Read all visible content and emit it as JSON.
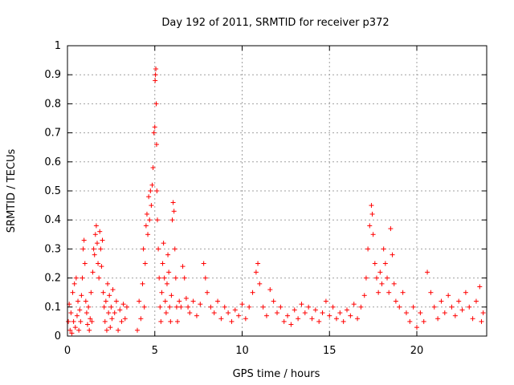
{
  "chart_data": {
    "type": "scatter",
    "title": "Day 192 of 2011, SRMTID for receiver p372",
    "xlabel": "GPS time / hours",
    "ylabel": "SRMTID / TECUs",
    "xlim": [
      0,
      24
    ],
    "ylim": [
      0,
      1
    ],
    "xticks": [
      "0",
      "5",
      "10",
      "15",
      "20"
    ],
    "yticks": [
      "0",
      "0.1",
      "0.2",
      "0.3",
      "0.4",
      "0.5",
      "0.6",
      "0.7",
      "0.8",
      "0.9",
      "1"
    ],
    "grid": true,
    "marker": "plus",
    "color": "#ff0000",
    "series": [
      {
        "points": [
          [
            0.05,
            0.05
          ],
          [
            0.1,
            0.11
          ],
          [
            0.15,
            0.02
          ],
          [
            0.2,
            0.08
          ],
          [
            0.25,
            0.01
          ],
          [
            0.3,
            0.15
          ],
          [
            0.35,
            0.05
          ],
          [
            0.4,
            0.18
          ],
          [
            0.45,
            0.03
          ],
          [
            0.5,
            0.2
          ],
          [
            0.55,
            0.07
          ],
          [
            0.6,
            0.12
          ],
          [
            0.65,
            0.02
          ],
          [
            0.7,
            0.09
          ],
          [
            0.75,
            0.05
          ],
          [
            0.8,
            0.14
          ],
          [
            0.85,
            0.2
          ],
          [
            0.9,
            0.3
          ],
          [
            0.95,
            0.33
          ],
          [
            1.0,
            0.25
          ],
          [
            1.05,
            0.12
          ],
          [
            1.1,
            0.08
          ],
          [
            1.15,
            0.04
          ],
          [
            1.2,
            0.1
          ],
          [
            1.25,
            0.02
          ],
          [
            1.3,
            0.06
          ],
          [
            1.35,
            0.15
          ],
          [
            1.4,
            0.05
          ],
          [
            1.45,
            0.22
          ],
          [
            1.5,
            0.3
          ],
          [
            1.55,
            0.28
          ],
          [
            1.6,
            0.35
          ],
          [
            1.65,
            0.38
          ],
          [
            1.7,
            0.32
          ],
          [
            1.75,
            0.25
          ],
          [
            1.8,
            0.2
          ],
          [
            1.85,
            0.36
          ],
          [
            1.9,
            0.3
          ],
          [
            1.95,
            0.24
          ],
          [
            2.0,
            0.33
          ],
          [
            2.05,
            0.15
          ],
          [
            2.1,
            0.1
          ],
          [
            2.15,
            0.05
          ],
          [
            2.2,
            0.12
          ],
          [
            2.25,
            0.02
          ],
          [
            2.3,
            0.18
          ],
          [
            2.35,
            0.08
          ],
          [
            2.4,
            0.14
          ],
          [
            2.45,
            0.03
          ],
          [
            2.5,
            0.1
          ],
          [
            2.55,
            0.06
          ],
          [
            2.6,
            0.16
          ],
          [
            2.7,
            0.08
          ],
          [
            2.8,
            0.12
          ],
          [
            2.9,
            0.02
          ],
          [
            3.0,
            0.09
          ],
          [
            3.1,
            0.05
          ],
          [
            3.2,
            0.11
          ],
          [
            3.3,
            0.06
          ],
          [
            3.4,
            0.1
          ],
          [
            4.0,
            0.02
          ],
          [
            4.1,
            0.12
          ],
          [
            4.2,
            0.06
          ],
          [
            4.3,
            0.18
          ],
          [
            4.35,
            0.3
          ],
          [
            4.4,
            0.1
          ],
          [
            4.45,
            0.25
          ],
          [
            4.5,
            0.38
          ],
          [
            4.55,
            0.42
          ],
          [
            4.6,
            0.35
          ],
          [
            4.65,
            0.48
          ],
          [
            4.7,
            0.4
          ],
          [
            4.75,
            0.5
          ],
          [
            4.8,
            0.45
          ],
          [
            4.85,
            0.52
          ],
          [
            4.9,
            0.58
          ],
          [
            4.95,
            0.7
          ],
          [
            5.0,
            0.72
          ],
          [
            5.02,
            0.88
          ],
          [
            5.04,
            0.9
          ],
          [
            5.06,
            0.92
          ],
          [
            5.08,
            0.8
          ],
          [
            5.1,
            0.66
          ],
          [
            5.12,
            0.5
          ],
          [
            5.15,
            0.4
          ],
          [
            5.2,
            0.3
          ],
          [
            5.25,
            0.2
          ],
          [
            5.3,
            0.1
          ],
          [
            5.35,
            0.05
          ],
          [
            5.4,
            0.15
          ],
          [
            5.45,
            0.25
          ],
          [
            5.5,
            0.32
          ],
          [
            5.55,
            0.2
          ],
          [
            5.6,
            0.12
          ],
          [
            5.65,
            0.08
          ],
          [
            5.7,
            0.18
          ],
          [
            5.75,
            0.28
          ],
          [
            5.8,
            0.22
          ],
          [
            5.85,
            0.1
          ],
          [
            5.9,
            0.05
          ],
          [
            5.95,
            0.14
          ],
          [
            6.0,
            0.4
          ],
          [
            6.05,
            0.46
          ],
          [
            6.1,
            0.43
          ],
          [
            6.15,
            0.3
          ],
          [
            6.2,
            0.2
          ],
          [
            6.25,
            0.1
          ],
          [
            6.3,
            0.05
          ],
          [
            6.4,
            0.12
          ],
          [
            6.5,
            0.1
          ],
          [
            6.6,
            0.24
          ],
          [
            6.7,
            0.2
          ],
          [
            6.8,
            0.13
          ],
          [
            6.9,
            0.1
          ],
          [
            7.0,
            0.08
          ],
          [
            7.2,
            0.12
          ],
          [
            7.4,
            0.07
          ],
          [
            7.6,
            0.11
          ],
          [
            7.8,
            0.25
          ],
          [
            7.9,
            0.2
          ],
          [
            8.0,
            0.15
          ],
          [
            8.2,
            0.1
          ],
          [
            8.4,
            0.08
          ],
          [
            8.6,
            0.12
          ],
          [
            8.8,
            0.06
          ],
          [
            9.0,
            0.1
          ],
          [
            9.2,
            0.08
          ],
          [
            9.4,
            0.05
          ],
          [
            9.6,
            0.09
          ],
          [
            9.8,
            0.07
          ],
          [
            10.0,
            0.11
          ],
          [
            10.2,
            0.06
          ],
          [
            10.4,
            0.1
          ],
          [
            10.6,
            0.15
          ],
          [
            10.8,
            0.22
          ],
          [
            10.9,
            0.25
          ],
          [
            11.0,
            0.18
          ],
          [
            11.2,
            0.1
          ],
          [
            11.4,
            0.07
          ],
          [
            11.6,
            0.16
          ],
          [
            11.8,
            0.12
          ],
          [
            12.0,
            0.08
          ],
          [
            12.2,
            0.1
          ],
          [
            12.4,
            0.05
          ],
          [
            12.6,
            0.07
          ],
          [
            12.8,
            0.04
          ],
          [
            13.0,
            0.09
          ],
          [
            13.2,
            0.06
          ],
          [
            13.4,
            0.11
          ],
          [
            13.6,
            0.08
          ],
          [
            13.8,
            0.1
          ],
          [
            14.0,
            0.06
          ],
          [
            14.2,
            0.09
          ],
          [
            14.4,
            0.05
          ],
          [
            14.6,
            0.08
          ],
          [
            14.8,
            0.12
          ],
          [
            15.0,
            0.07
          ],
          [
            15.2,
            0.1
          ],
          [
            15.4,
            0.06
          ],
          [
            15.6,
            0.08
          ],
          [
            15.8,
            0.05
          ],
          [
            16.0,
            0.09
          ],
          [
            16.2,
            0.07
          ],
          [
            16.4,
            0.11
          ],
          [
            16.6,
            0.06
          ],
          [
            16.8,
            0.1
          ],
          [
            17.0,
            0.14
          ],
          [
            17.1,
            0.2
          ],
          [
            17.2,
            0.3
          ],
          [
            17.3,
            0.38
          ],
          [
            17.4,
            0.45
          ],
          [
            17.45,
            0.42
          ],
          [
            17.5,
            0.35
          ],
          [
            17.6,
            0.25
          ],
          [
            17.7,
            0.2
          ],
          [
            17.8,
            0.15
          ],
          [
            17.9,
            0.22
          ],
          [
            18.0,
            0.18
          ],
          [
            18.1,
            0.3
          ],
          [
            18.2,
            0.25
          ],
          [
            18.3,
            0.2
          ],
          [
            18.4,
            0.15
          ],
          [
            18.5,
            0.37
          ],
          [
            18.6,
            0.28
          ],
          [
            18.7,
            0.18
          ],
          [
            18.8,
            0.12
          ],
          [
            19.0,
            0.1
          ],
          [
            19.2,
            0.15
          ],
          [
            19.4,
            0.08
          ],
          [
            19.6,
            0.05
          ],
          [
            19.8,
            0.1
          ],
          [
            20.0,
            0.03
          ],
          [
            20.2,
            0.08
          ],
          [
            20.4,
            0.05
          ],
          [
            20.6,
            0.22
          ],
          [
            20.8,
            0.15
          ],
          [
            21.0,
            0.1
          ],
          [
            21.2,
            0.06
          ],
          [
            21.4,
            0.12
          ],
          [
            21.6,
            0.08
          ],
          [
            21.8,
            0.14
          ],
          [
            22.0,
            0.1
          ],
          [
            22.2,
            0.07
          ],
          [
            22.4,
            0.12
          ],
          [
            22.6,
            0.09
          ],
          [
            22.8,
            0.15
          ],
          [
            23.0,
            0.1
          ],
          [
            23.2,
            0.06
          ],
          [
            23.4,
            0.12
          ],
          [
            23.6,
            0.17
          ],
          [
            23.7,
            0.05
          ],
          [
            23.8,
            0.08
          ]
        ]
      }
    ]
  }
}
